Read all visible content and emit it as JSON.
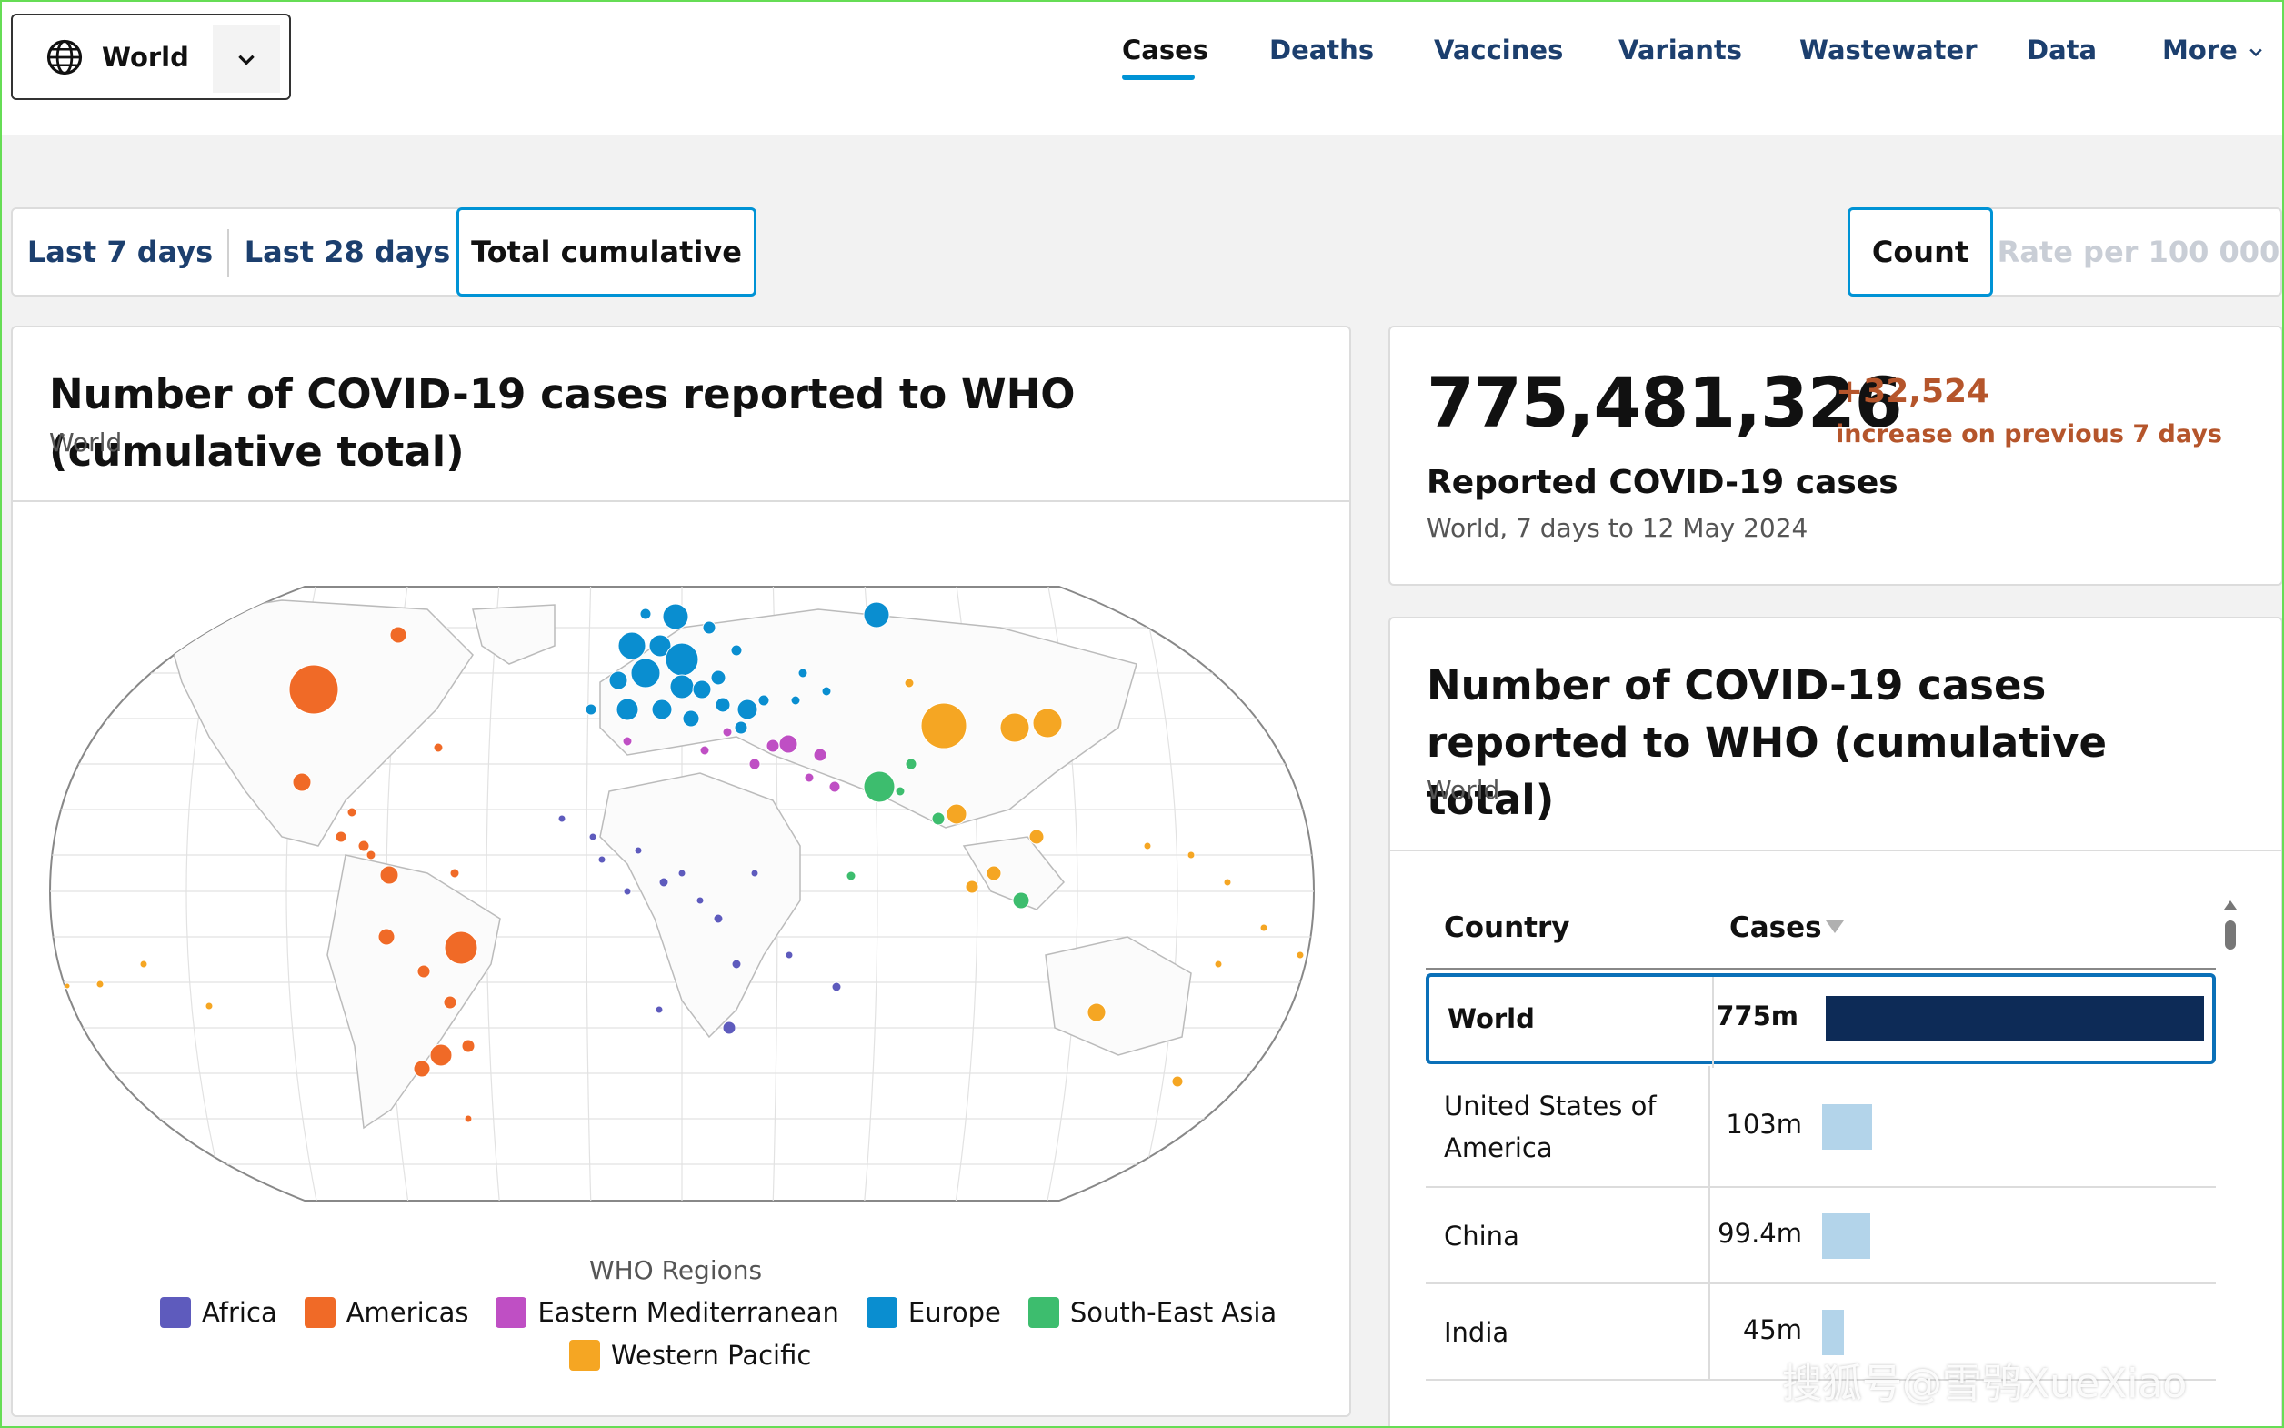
{
  "region_selector": {
    "label": "World",
    "icon": "globe-icon"
  },
  "nav": {
    "items": [
      "Cases",
      "Deaths",
      "Vaccines",
      "Variants",
      "Wastewater",
      "Data",
      "More"
    ],
    "active": "Cases"
  },
  "period_toggle": {
    "options": [
      "Last 7 days",
      "Last 28 days",
      "Total cumulative"
    ],
    "selected": "Total cumulative"
  },
  "metric_toggle": {
    "options": [
      "Count",
      "Rate per 100 000"
    ],
    "selected": "Count"
  },
  "map_panel": {
    "title": "Number of COVID-19 cases reported to WHO (cumulative total)",
    "subtitle": "World",
    "legend_title": "WHO Regions",
    "legend": [
      {
        "label": "Africa",
        "color": "#5e5bbd"
      },
      {
        "label": "Americas",
        "color": "#f06a27"
      },
      {
        "label": "Eastern Mediterranean",
        "color": "#bf4fc4"
      },
      {
        "label": "Europe",
        "color": "#0a8ed0"
      },
      {
        "label": "South-East Asia",
        "color": "#3dbd6e"
      },
      {
        "label": "Western Pacific",
        "color": "#f5a623"
      }
    ]
  },
  "summary": {
    "total": "775,481,326",
    "delta": "+32,524",
    "delta_text": "increase on previous 7 days",
    "label": "Reported COVID-19 cases",
    "sub": "World, 7 days to 12 May 2024"
  },
  "table_panel": {
    "title": "Number of COVID-19 cases reported to WHO (cumulative total)",
    "subtitle": "World",
    "headers": {
      "country": "Country",
      "cases": "Cases"
    },
    "rows": [
      {
        "country": "World",
        "value": "775m",
        "share": 1.0,
        "color": "#0d2b57",
        "bold": true
      },
      {
        "country": "United States of America",
        "value": "103m",
        "share": 0.133,
        "color": "#b3d4ea"
      },
      {
        "country": "China",
        "value": "99.4m",
        "share": 0.128,
        "color": "#b3d4ea"
      },
      {
        "country": "India",
        "value": "45m",
        "share": 0.058,
        "color": "#b3d4ea"
      }
    ]
  },
  "watermark": "搜狐号@雪鸮XueXiao"
}
